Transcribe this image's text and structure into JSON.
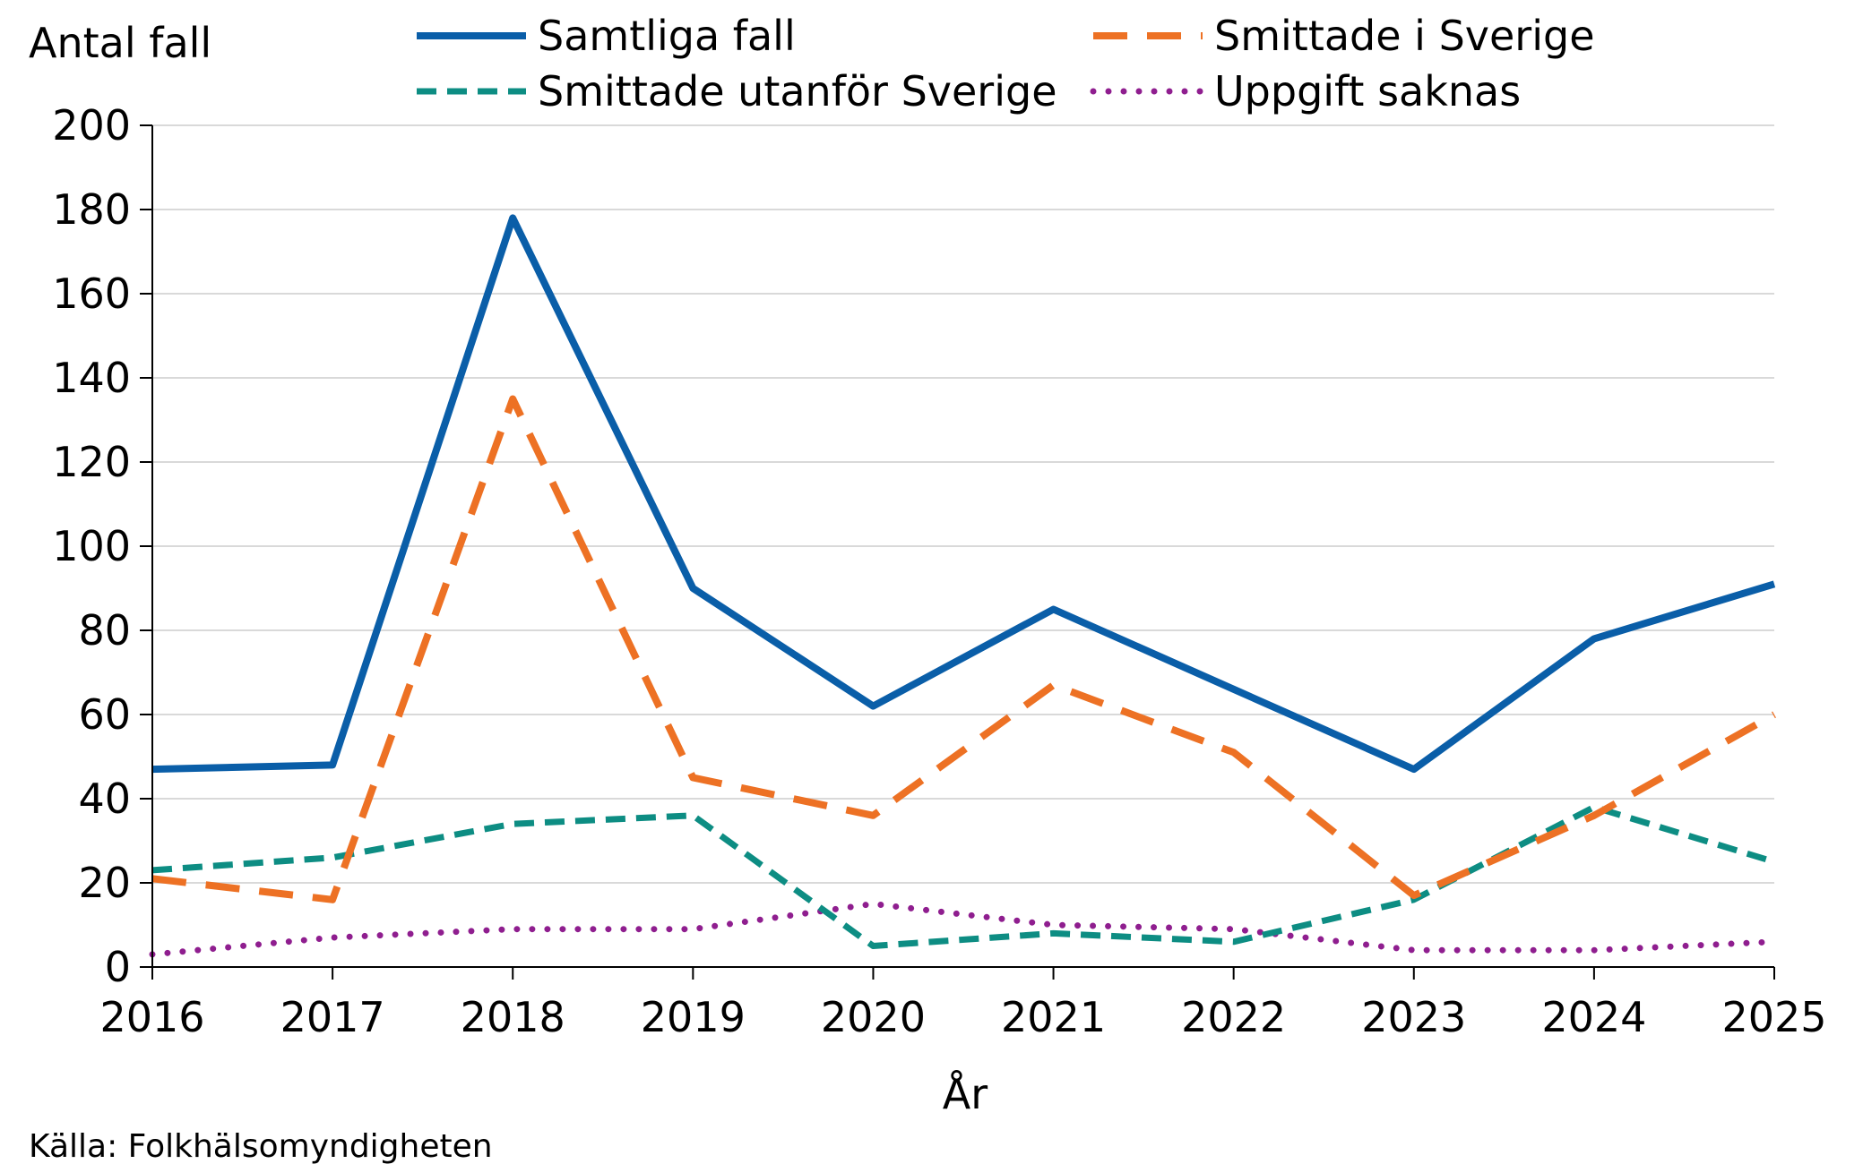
{
  "chart_data": {
    "type": "line",
    "title": "",
    "ylabel": "Antal fall",
    "xlabel": "År",
    "source": "Källa: Folkhälsomyndigheten",
    "x": [
      2016,
      2017,
      2018,
      2019,
      2020,
      2021,
      2022,
      2023,
      2024,
      2025
    ],
    "x_tick_labels": [
      "2016",
      "2017",
      "2018",
      "2019",
      "2020",
      "2021",
      "2022",
      "2023",
      "2024",
      "2025"
    ],
    "ylim": [
      0,
      200
    ],
    "y_ticks": [
      0,
      20,
      40,
      60,
      80,
      100,
      120,
      140,
      160,
      180,
      200
    ],
    "y_tick_labels": [
      "0",
      "20",
      "40",
      "60",
      "80",
      "100",
      "120",
      "140",
      "160",
      "180",
      "200"
    ],
    "grid": "horizontal",
    "legend_position": "top",
    "series": [
      {
        "name": "Samtliga fall",
        "color": "#0a5ea8",
        "style": "solid",
        "values": [
          47,
          48,
          178,
          90,
          62,
          85,
          66,
          47,
          78,
          91
        ]
      },
      {
        "name": "Smittade i Sverige",
        "color": "#ed7124",
        "style": "dashed",
        "values": [
          21,
          16,
          135,
          45,
          36,
          67,
          51,
          17,
          36,
          60
        ]
      },
      {
        "name": "Smittade utanför Sverige",
        "color": "#0d8d83",
        "style": "dashed-short",
        "values": [
          23,
          26,
          34,
          36,
          5,
          8,
          6,
          16,
          38,
          25
        ]
      },
      {
        "name": "Uppgift saknas",
        "color": "#8f1e8f",
        "style": "dotted",
        "values": [
          3,
          7,
          9,
          9,
          15,
          10,
          9,
          4,
          4,
          6
        ]
      }
    ]
  }
}
